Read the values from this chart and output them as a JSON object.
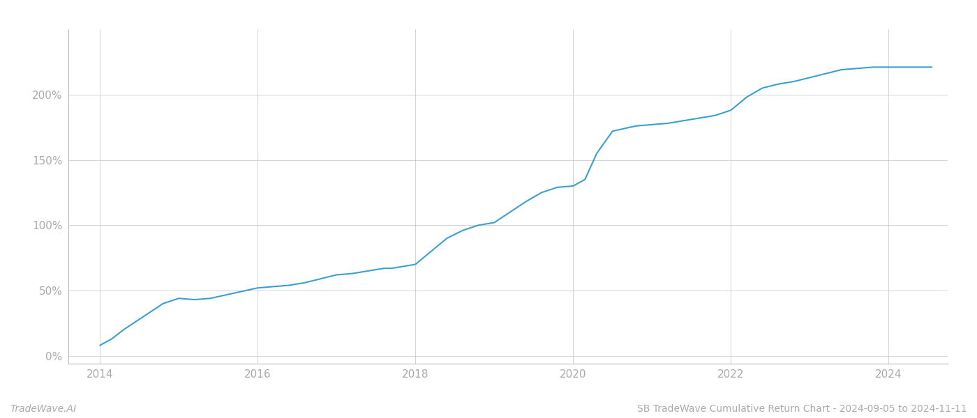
{
  "title": "SB TradeWave Cumulative Return Chart - 2024-09-05 to 2024-11-11",
  "watermark": "TradeWave.AI",
  "line_color": "#3a9fd1",
  "background_color": "#ffffff",
  "grid_color": "#cccccc",
  "line_width": 1.5,
  "xlim": [
    2013.6,
    2024.75
  ],
  "ylim": [
    -0.06,
    2.5
  ],
  "yticks": [
    0.0,
    0.5,
    1.0,
    1.5,
    2.0
  ],
  "ytick_labels": [
    "0%",
    "50%",
    "100%",
    "150%",
    "200%"
  ],
  "xticks": [
    2014,
    2016,
    2018,
    2020,
    2022,
    2024
  ],
  "years": [
    2014.0,
    2014.15,
    2014.3,
    2014.5,
    2014.65,
    2014.8,
    2015.0,
    2015.2,
    2015.4,
    2015.55,
    2015.7,
    2015.85,
    2016.0,
    2016.2,
    2016.4,
    2016.6,
    2016.8,
    2017.0,
    2017.2,
    2017.4,
    2017.5,
    2017.6,
    2017.7,
    2017.8,
    2018.0,
    2018.2,
    2018.4,
    2018.6,
    2018.8,
    2019.0,
    2019.2,
    2019.4,
    2019.6,
    2019.8,
    2020.0,
    2020.15,
    2020.3,
    2020.5,
    2020.65,
    2020.8,
    2021.0,
    2021.2,
    2021.4,
    2021.6,
    2021.8,
    2022.0,
    2022.2,
    2022.4,
    2022.6,
    2022.8,
    2023.0,
    2023.2,
    2023.4,
    2023.6,
    2023.8,
    2024.0,
    2024.3,
    2024.55
  ],
  "values": [
    0.08,
    0.13,
    0.2,
    0.28,
    0.34,
    0.4,
    0.44,
    0.43,
    0.44,
    0.46,
    0.48,
    0.5,
    0.52,
    0.53,
    0.54,
    0.56,
    0.59,
    0.62,
    0.63,
    0.65,
    0.66,
    0.67,
    0.67,
    0.68,
    0.7,
    0.8,
    0.9,
    0.96,
    1.0,
    1.02,
    1.1,
    1.18,
    1.25,
    1.29,
    1.3,
    1.35,
    1.55,
    1.72,
    1.74,
    1.76,
    1.77,
    1.78,
    1.8,
    1.82,
    1.84,
    1.88,
    1.98,
    2.05,
    2.08,
    2.1,
    2.13,
    2.16,
    2.19,
    2.2,
    2.21,
    2.21,
    2.21,
    2.21
  ]
}
